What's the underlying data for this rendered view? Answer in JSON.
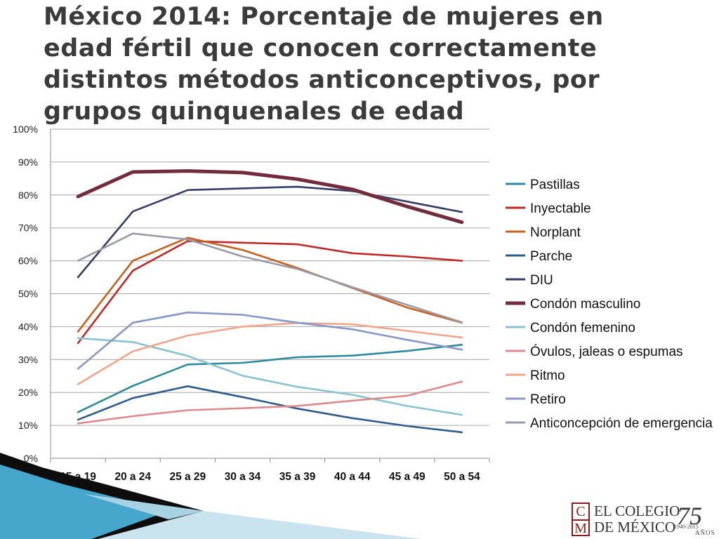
{
  "slide": {
    "title": "México 2014: Porcentaje de mujeres en edad fértil que conocen correctamente distintos métodos anticonceptivos, por grupos quinquenales de edad"
  },
  "chart_data": {
    "type": "line",
    "title": "",
    "xlabel": "",
    "ylabel": "",
    "ylim": [
      0,
      100
    ],
    "yticks": [
      "0%",
      "10%",
      "20%",
      "30%",
      "40%",
      "50%",
      "60%",
      "70%",
      "80%",
      "90%",
      "100%"
    ],
    "grid": true,
    "legend_position": "right",
    "categories": [
      "15 a 19",
      "20 a 24",
      "25 a 29",
      "30 a 34",
      "35 a 39",
      "40 a 44",
      "45 a 49",
      "50 a 54"
    ],
    "series": [
      {
        "name": "Pastillas",
        "color": "#2e8a9c",
        "values": [
          14,
          22,
          28.5,
          29,
          30.7,
          31.2,
          32.6,
          34.5
        ]
      },
      {
        "name": "Inyectable",
        "color": "#c02828",
        "values": [
          35,
          57,
          66,
          65.5,
          65,
          62.3,
          61.3,
          60
        ]
      },
      {
        "name": "Norplant",
        "color": "#c8601c",
        "values": [
          38.5,
          60,
          67,
          63.3,
          57.8,
          51.8,
          45.8,
          41.2
        ]
      },
      {
        "name": "Parche",
        "color": "#2e5d8c",
        "values": [
          11.7,
          18.3,
          21.9,
          18.6,
          15.1,
          12.2,
          9.8,
          7.9
        ]
      },
      {
        "name": "DIU",
        "color": "#343d68",
        "values": [
          55,
          75,
          81.5,
          82,
          82.5,
          81.2,
          78,
          74.8
        ]
      },
      {
        "name": "Condón masculino",
        "color": "#722c3c",
        "values": [
          79.5,
          87,
          87.3,
          86.8,
          84.8,
          81.7,
          76.5,
          71.7
        ]
      },
      {
        "name": "Condón femenino",
        "color": "#88c3d2",
        "values": [
          36.5,
          35.3,
          31.1,
          25.1,
          21.7,
          19.3,
          15.9,
          13.2
        ]
      },
      {
        "name": "Óvulos, jaleas o espumas",
        "color": "#dd8a8a",
        "values": [
          10.6,
          12.8,
          14.6,
          15.2,
          15.9,
          17.5,
          19,
          23.3
        ]
      },
      {
        "name": "Ritmo",
        "color": "#f2a588",
        "values": [
          22.5,
          32.5,
          37.3,
          40,
          41.1,
          40.7,
          38.7,
          36.7
        ]
      },
      {
        "name": "Retiro",
        "color": "#8797c8",
        "values": [
          27.2,
          41.2,
          44.3,
          43.6,
          41.2,
          39.2,
          36,
          33
        ]
      },
      {
        "name": "Anticoncepción de emergencia",
        "color": "#9a9aa8",
        "values": [
          60,
          68.3,
          66.5,
          61.3,
          57.5,
          52,
          46.6,
          41.3
        ]
      }
    ]
  },
  "logo": {
    "mark_top": "C",
    "mark_bottom": "M",
    "name_line1": "EL COLEGIO",
    "name_line2": "DE MÉXICO",
    "years": "75",
    "range": "1940-2015",
    "anos": "AÑOS"
  }
}
